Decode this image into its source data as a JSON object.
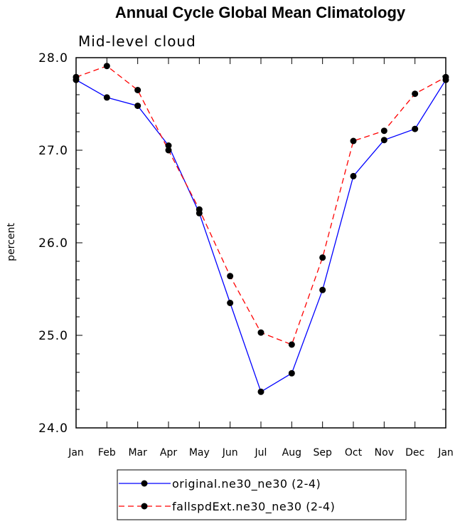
{
  "chart_data": {
    "type": "line",
    "title": "Annual Cycle Global Mean Climatology",
    "subtitle": "Mid-level cloud",
    "ylabel": "percent",
    "xlabel": "",
    "categories": [
      "Jan",
      "Feb",
      "Mar",
      "Apr",
      "May",
      "Jun",
      "Jul",
      "Aug",
      "Sep",
      "Oct",
      "Nov",
      "Dec",
      "Jan"
    ],
    "ylim": [
      24.0,
      28.0
    ],
    "yticks": [
      "24.0",
      "25.0",
      "26.0",
      "27.0",
      "28.0"
    ],
    "series": [
      {
        "name": "original.ne30_ne30 (2-4)",
        "color": "#0000ff",
        "style": "solid",
        "values": [
          27.76,
          27.57,
          27.48,
          27.05,
          26.32,
          25.35,
          24.39,
          24.59,
          25.49,
          26.72,
          27.11,
          27.23,
          27.76
        ]
      },
      {
        "name": "fallspdExt.ne30_ne30 (2-4)",
        "color": "#ff0000",
        "style": "dashed",
        "values": [
          27.79,
          27.91,
          27.65,
          27.0,
          26.36,
          25.64,
          25.03,
          24.9,
          25.84,
          27.1,
          27.21,
          27.61,
          27.79
        ]
      }
    ],
    "legend_position": "bottom-center",
    "grid": false
  }
}
